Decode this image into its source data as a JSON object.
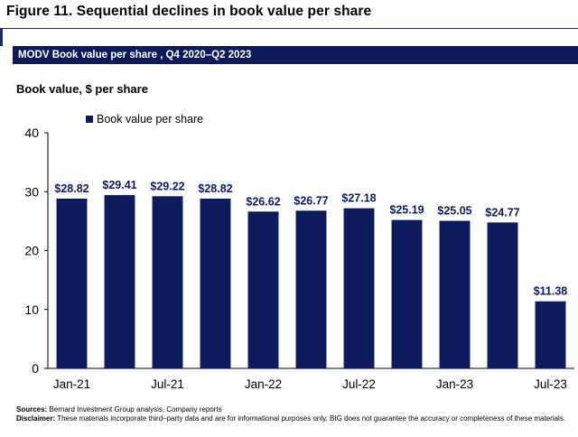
{
  "figure_title": "Figure 11. Sequential declines in book value per share",
  "banner": "MODV Book value per share , Q4 2020–Q2 2023",
  "y_axis_title": "Book value, $ per share",
  "colors": {
    "bar": "#0d1b5c",
    "banner_bg": "#0d1b5c",
    "rule": "#1a2a6c"
  },
  "chart_data": {
    "type": "bar",
    "legend": [
      "Book value per share"
    ],
    "legend_placement": "top-left",
    "x_tick_labels": [
      "Jan-21",
      "Jul-21",
      "Jan-22",
      "Jul-22",
      "Jan-23",
      "Jul-23"
    ],
    "series": [
      {
        "name": "Book value per share",
        "values": [
          28.82,
          29.41,
          29.22,
          28.82,
          26.62,
          26.77,
          27.18,
          25.19,
          25.05,
          24.77,
          11.38
        ],
        "labels": [
          "$28.82",
          "$29.41",
          "$29.22",
          "$28.82",
          "$26.62",
          "$26.77",
          "$27.18",
          "$25.19",
          "$25.05",
          "$24.77",
          "$11.38"
        ]
      }
    ],
    "ylim": [
      0,
      40
    ],
    "yticks": [
      0,
      10,
      20,
      30,
      40
    ],
    "grid": false
  },
  "footer": {
    "sources_label": "Sources:",
    "sources_text": " Bernard Investment Group analysis, Company reports",
    "disclaimer_label": "Disclaimer:",
    "disclaimer_text": " These materials incorporate third–party data and are for informational purposes only. BIG does not guarantee the accuracy or completeness of these materials."
  }
}
